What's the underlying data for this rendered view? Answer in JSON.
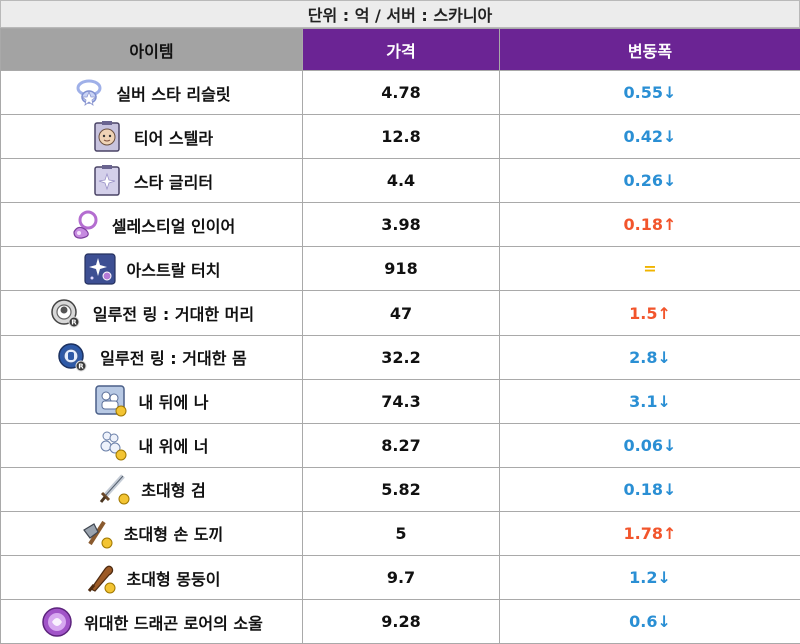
{
  "unit_label": "단위 : 억 / 서버 : 스카니아",
  "columns": {
    "item": "아이템",
    "price": "가격",
    "change": "변동폭"
  },
  "colors": {
    "header_purple": "#6b2494",
    "down": "#2a8fd4",
    "up": "#f2552c",
    "same": "#f0b400"
  },
  "rows": [
    {
      "icon": "silver-star-bracelet-icon",
      "name": "실버 스타 리슬릿",
      "price": "4.78",
      "change": "0.55↓",
      "dir": "down"
    },
    {
      "icon": "tier-stella-icon",
      "name": "티어 스텔라",
      "price": "12.8",
      "change": "0.42↓",
      "dir": "down"
    },
    {
      "icon": "star-glitter-icon",
      "name": "스타 글리터",
      "price": "4.4",
      "change": "0.26↓",
      "dir": "down"
    },
    {
      "icon": "celestial-inear-icon",
      "name": "셀레스티얼 인이어",
      "price": "3.98",
      "change": "0.18↑",
      "dir": "up"
    },
    {
      "icon": "astral-touch-icon",
      "name": "아스트랄 터치",
      "price": "918",
      "change": "=",
      "dir": "same"
    },
    {
      "icon": "ring-big-head-icon",
      "name": "일루전 링 : 거대한 머리",
      "price": "47",
      "change": "1.5↑",
      "dir": "up"
    },
    {
      "icon": "ring-big-body-icon",
      "name": "일루전 링 : 거대한 몸",
      "price": "32.2",
      "change": "2.8↓",
      "dir": "down"
    },
    {
      "icon": "behind-me-icon",
      "name": "내 뒤에 나",
      "price": "74.3",
      "change": "3.1↓",
      "dir": "down"
    },
    {
      "icon": "above-you-icon",
      "name": "내 위에 너",
      "price": "8.27",
      "change": "0.06↓",
      "dir": "down"
    },
    {
      "icon": "giant-sword-icon",
      "name": "초대형 검",
      "price": "5.82",
      "change": "0.18↓",
      "dir": "down"
    },
    {
      "icon": "giant-hand-axe-icon",
      "name": "초대형 손 도끼",
      "price": "5",
      "change": "1.78↑",
      "dir": "up"
    },
    {
      "icon": "giant-club-icon",
      "name": "초대형 몽둥이",
      "price": "9.7",
      "change": "1.2↓",
      "dir": "down"
    },
    {
      "icon": "dragon-lore-soul-icon",
      "name": "위대한 드래곤 로어의 소울",
      "price": "9.28",
      "change": "0.6↓",
      "dir": "down"
    }
  ]
}
